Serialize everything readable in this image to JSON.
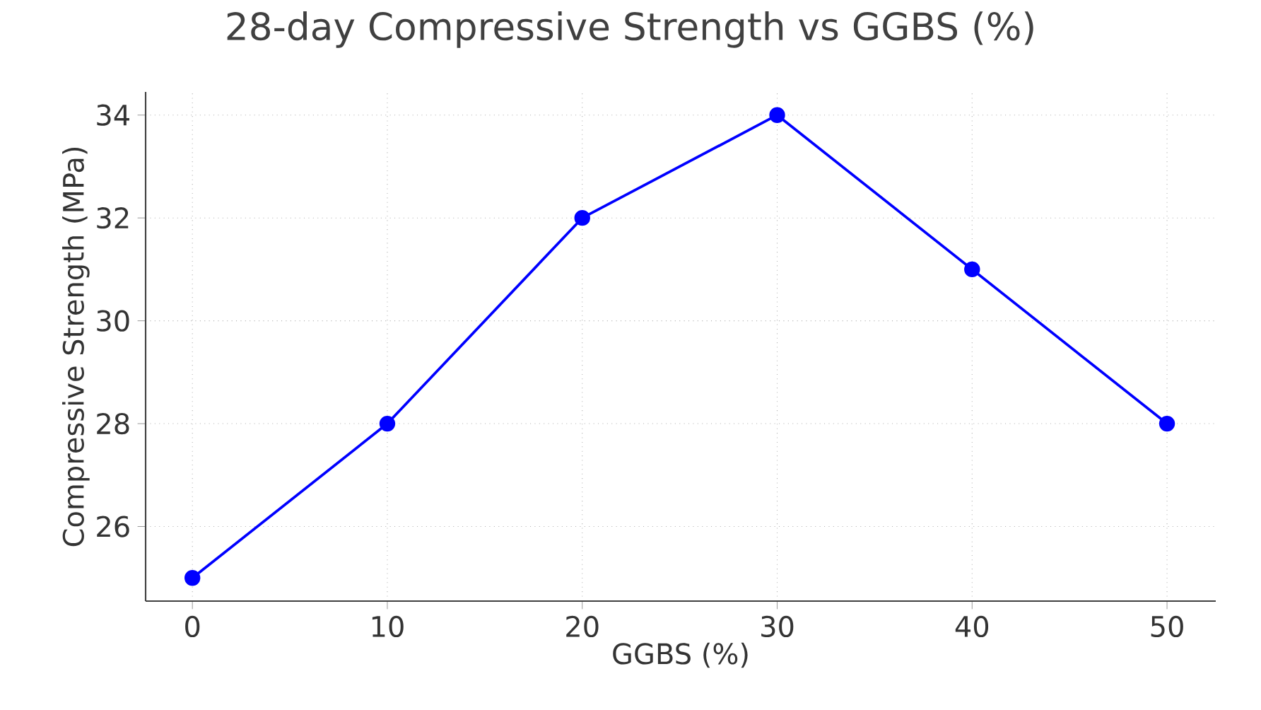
{
  "chart_data": {
    "type": "line",
    "title": "28-day Compressive Strength vs GGBS (%)",
    "xlabel": "GGBS (%)",
    "ylabel": "Compressive Strength (MPa)",
    "x": [
      0,
      10,
      20,
      30,
      40,
      50
    ],
    "series": [
      {
        "color": "#0000ff",
        "values": [
          25,
          28,
          32,
          34,
          31,
          28
        ]
      }
    ],
    "xlim": [
      -2.4,
      52.5
    ],
    "ylim": [
      24.55,
      34.45
    ],
    "xticks": [
      0,
      10,
      20,
      30,
      40,
      50
    ],
    "yticks": [
      26,
      28,
      30,
      32,
      34
    ],
    "grid": true,
    "marker": "circle",
    "line_style": "solid"
  }
}
